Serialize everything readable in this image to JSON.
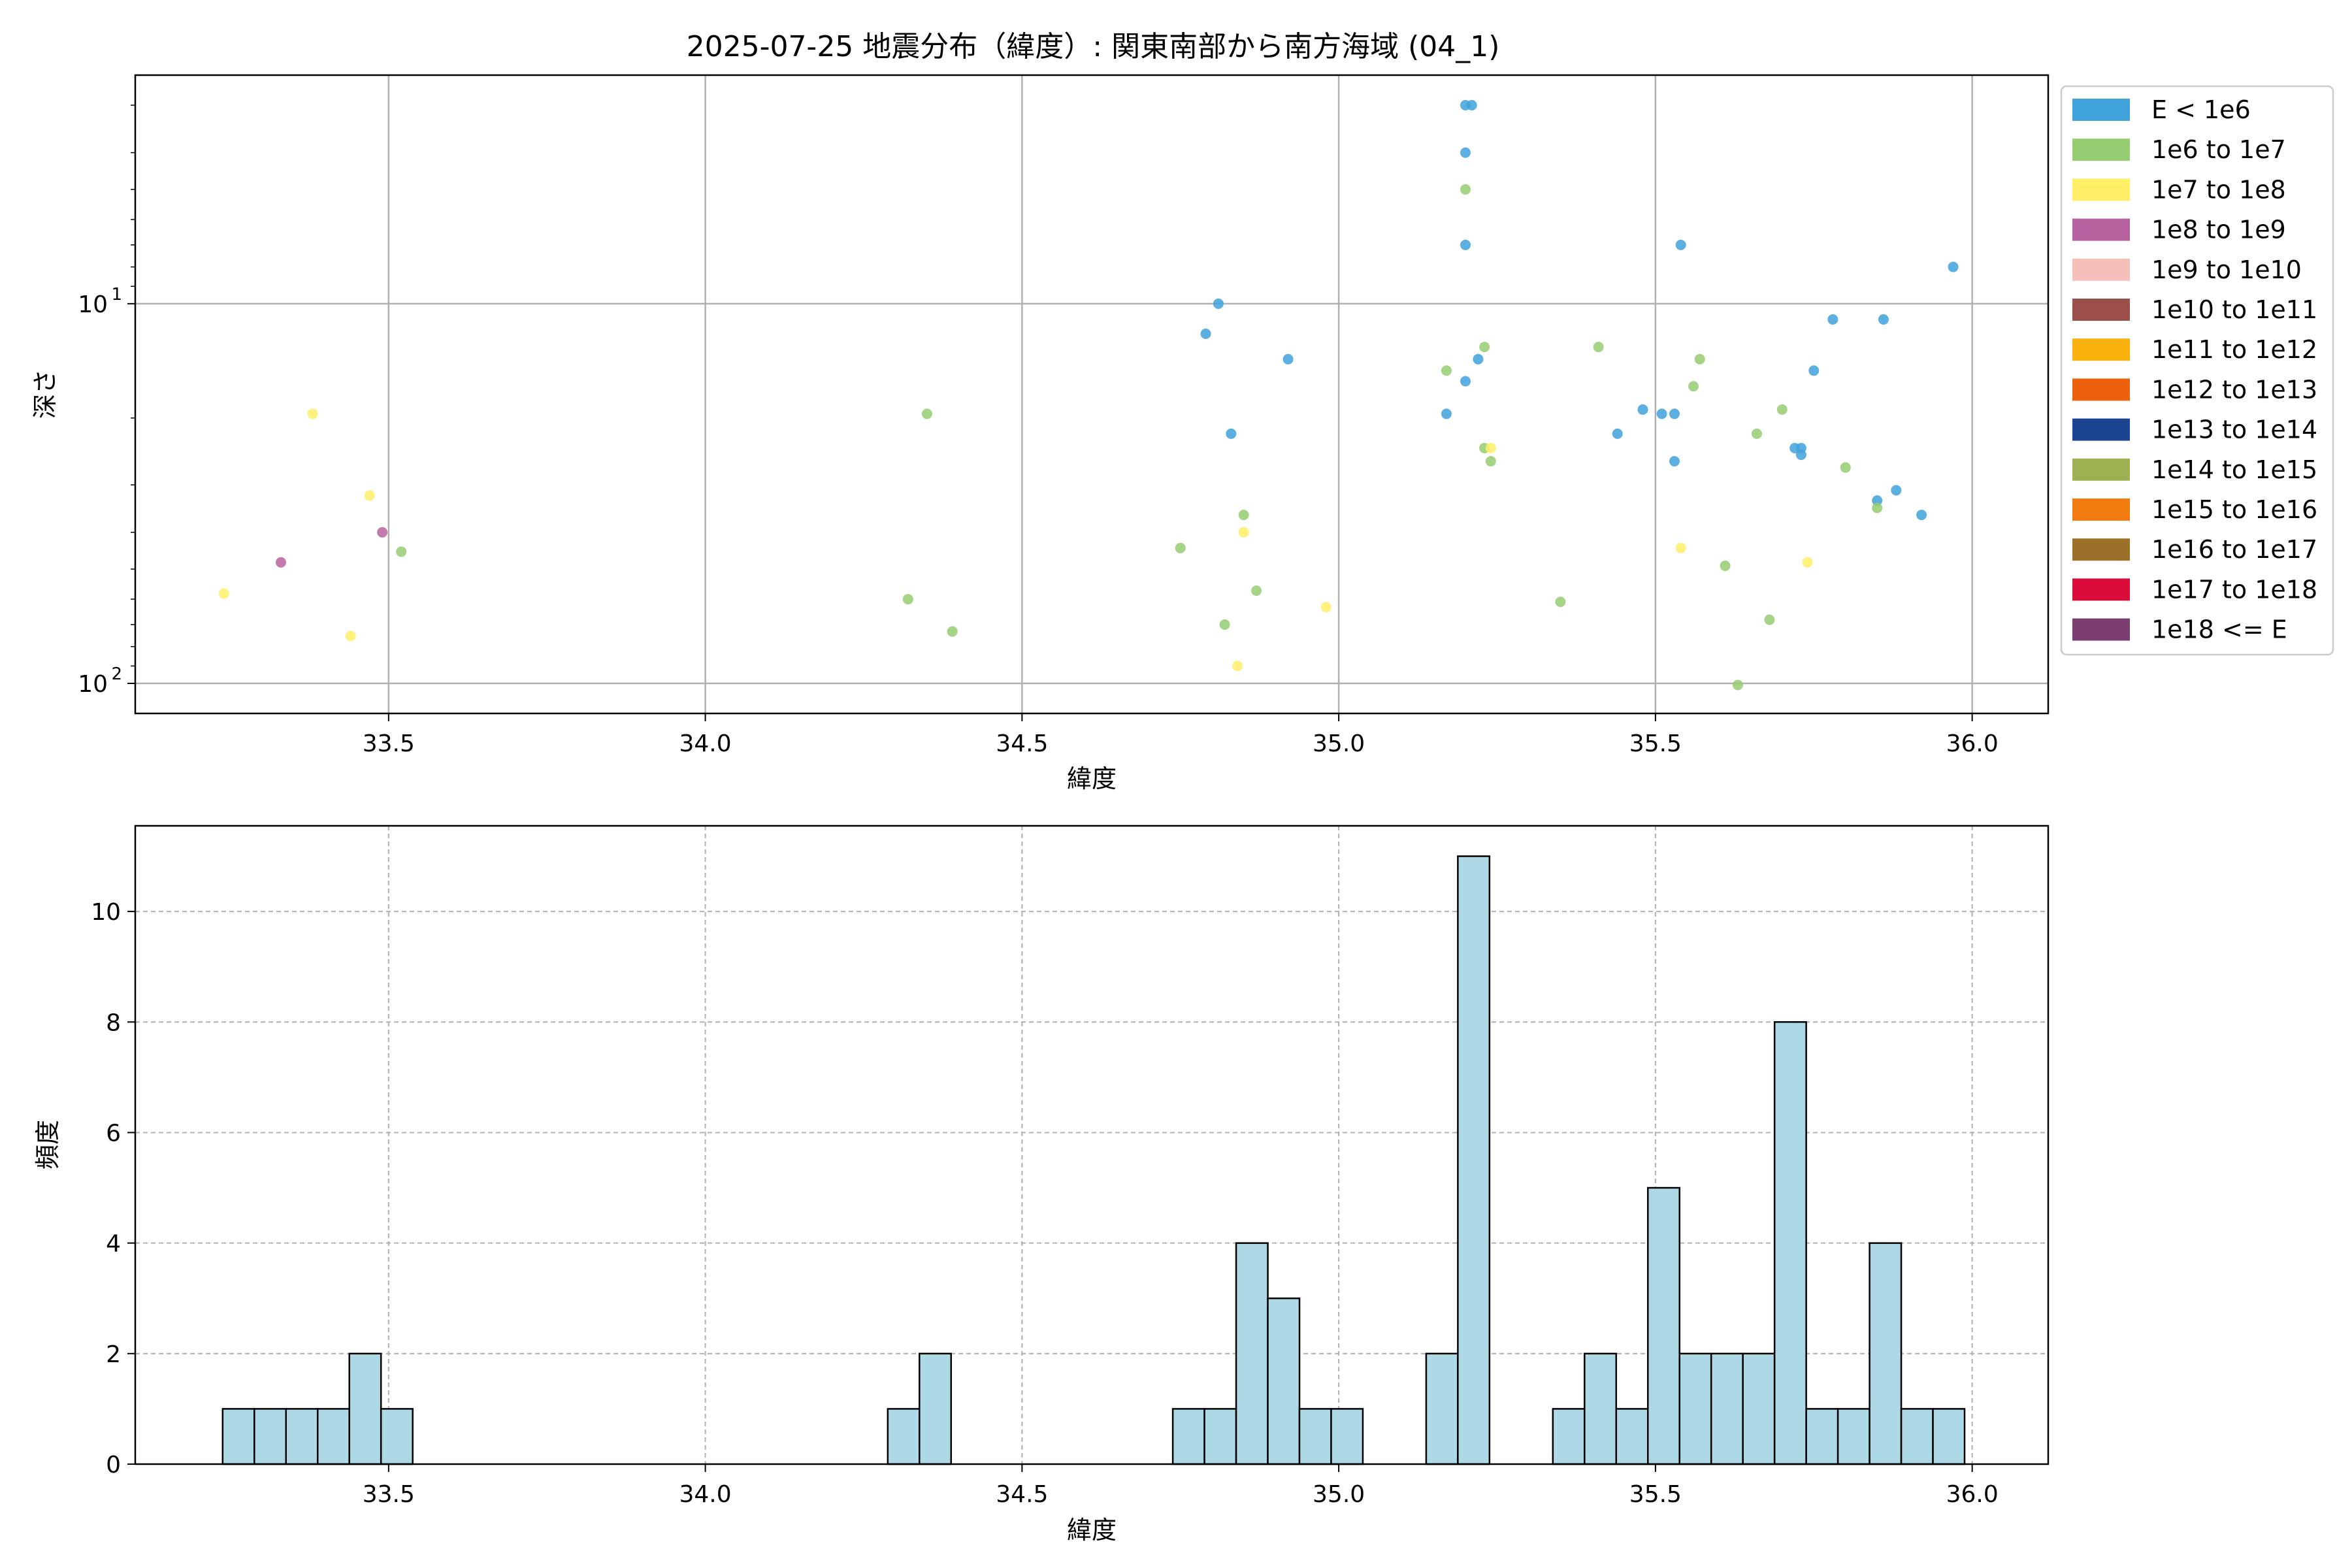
{
  "colors": {
    "hist_fill": "#add8e6",
    "hist_edge": "#000000",
    "grid": "#b0b0b0"
  },
  "chart_data": [
    {
      "type": "scatter",
      "title": "2025-07-25 地震分布（緯度）: 関東南部から南方海域 (04_1)",
      "xlabel": "緯度",
      "ylabel": "深さ",
      "xlim": [
        33.1,
        36.12
      ],
      "ylim": [
        120,
        2.5
      ],
      "yscale": "log",
      "yaxis_inverted": true,
      "grid": true,
      "xticks": [
        "33.5",
        "34.0",
        "34.5",
        "35.0",
        "35.5",
        "36.0"
      ],
      "yticks": [
        {
          "value": 10,
          "base": "10",
          "exp": "1"
        },
        {
          "value": 100,
          "base": "10",
          "exp": "2"
        }
      ],
      "legend_position": "outside-right",
      "legend": [
        {
          "label": "E < 1e6",
          "color": "#3fa2dc"
        },
        {
          "label": "1e6 to 1e7",
          "color": "#96cc72"
        },
        {
          "label": "1e7 to 1e8",
          "color": "#ffef66"
        },
        {
          "label": "1e8 to 1e9",
          "color": "#b7619e"
        },
        {
          "label": "1e9 to 1e10",
          "color": "#f5bfba"
        },
        {
          "label": "1e10 to 1e11",
          "color": "#9c4e4b"
        },
        {
          "label": "1e11 to 1e12",
          "color": "#f9b10e"
        },
        {
          "label": "1e12 to 1e13",
          "color": "#ec600e"
        },
        {
          "label": "1e13 to 1e14",
          "color": "#1c4591"
        },
        {
          "label": "1e14 to 1e15",
          "color": "#9db153"
        },
        {
          "label": "1e15 to 1e16",
          "color": "#f17b0e"
        },
        {
          "label": "1e16 to 1e17",
          "color": "#9b7129"
        },
        {
          "label": "1e17 to 1e18",
          "color": "#dc0c3a"
        },
        {
          "label": "1e18 <= E",
          "color": "#7c3e70"
        }
      ],
      "series": [
        {
          "color": "#3fa2dc",
          "points": [
            [
              35.2,
              3.0
            ],
            [
              35.21,
              3.0
            ],
            [
              35.2,
              4.0
            ],
            [
              35.2,
              7.0
            ],
            [
              35.54,
              7.0
            ],
            [
              35.97,
              8.0
            ],
            [
              34.81,
              10.0
            ],
            [
              35.78,
              11.0
            ],
            [
              35.86,
              11.0
            ],
            [
              34.79,
              12.0
            ],
            [
              34.92,
              14.0
            ],
            [
              35.22,
              14.0
            ],
            [
              35.75,
              15.0
            ],
            [
              35.2,
              16.0
            ],
            [
              35.48,
              19.0
            ],
            [
              35.17,
              19.5
            ],
            [
              35.51,
              19.5
            ],
            [
              35.53,
              19.5
            ],
            [
              34.83,
              22.0
            ],
            [
              35.44,
              22.0
            ],
            [
              35.72,
              24.0
            ],
            [
              35.73,
              24.0
            ],
            [
              35.73,
              25.0
            ],
            [
              35.53,
              26.0
            ],
            [
              35.88,
              31.0
            ],
            [
              35.85,
              33.0
            ],
            [
              35.92,
              36.0
            ]
          ]
        },
        {
          "color": "#96cc72",
          "points": [
            [
              35.2,
              5.0
            ],
            [
              35.23,
              13.0
            ],
            [
              35.41,
              13.0
            ],
            [
              35.57,
              14.0
            ],
            [
              35.17,
              15.0
            ],
            [
              35.56,
              16.5
            ],
            [
              35.7,
              19.0
            ],
            [
              34.35,
              19.5
            ],
            [
              35.66,
              22.0
            ],
            [
              35.23,
              24.0
            ],
            [
              35.24,
              26.0
            ],
            [
              35.8,
              27.0
            ],
            [
              35.85,
              34.5
            ],
            [
              34.85,
              36.0
            ],
            [
              33.52,
              45.0
            ],
            [
              34.75,
              44.0
            ],
            [
              35.61,
              49.0
            ],
            [
              34.87,
              57.0
            ],
            [
              34.32,
              60.0
            ],
            [
              35.35,
              61.0
            ],
            [
              35.68,
              68.0
            ],
            [
              34.82,
              70.0
            ],
            [
              34.39,
              73.0
            ],
            [
              35.63,
              101.0
            ]
          ]
        },
        {
          "color": "#ffef66",
          "points": [
            [
              35.24,
              24.0
            ],
            [
              33.38,
              19.5
            ],
            [
              33.47,
              32.0
            ],
            [
              34.85,
              40.0
            ],
            [
              35.54,
              44.0
            ],
            [
              35.74,
              48.0
            ],
            [
              33.24,
              58.0
            ],
            [
              34.98,
              63.0
            ],
            [
              33.44,
              75.0
            ],
            [
              34.84,
              90.0
            ]
          ]
        },
        {
          "color": "#b7619e",
          "points": [
            [
              33.49,
              40.0
            ],
            [
              33.33,
              48.0
            ]
          ]
        }
      ]
    },
    {
      "type": "bar",
      "xlabel": "緯度",
      "ylabel": "頻度",
      "xlim": [
        33.1,
        36.12
      ],
      "ylim": [
        0,
        11.55
      ],
      "grid": true,
      "grid_style": "dashed",
      "xticks": [
        "33.5",
        "34.0",
        "34.5",
        "35.0",
        "35.5",
        "36.0"
      ],
      "yticks": [
        "0",
        "2",
        "4",
        "6",
        "8",
        "10"
      ],
      "bin_start": 33.238,
      "bin_width": 0.05,
      "values": [
        1,
        1,
        1,
        1,
        2,
        1,
        0,
        0,
        0,
        0,
        0,
        0,
        0,
        0,
        0,
        0,
        0,
        0,
        0,
        0,
        0,
        1,
        2,
        0,
        0,
        0,
        0,
        0,
        0,
        0,
        1,
        1,
        4,
        3,
        1,
        1,
        0,
        0,
        2,
        11,
        0,
        0,
        1,
        2,
        1,
        5,
        2,
        2,
        2,
        8,
        1,
        1,
        4,
        1,
        1
      ]
    }
  ]
}
